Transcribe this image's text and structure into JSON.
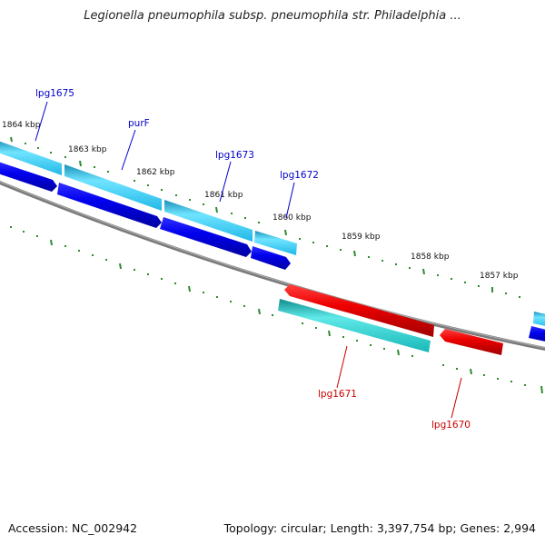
{
  "title": "Legionella pneumophila subsp. pneumophila str. Philadelphia ...",
  "accession": "Accession: NC_002942",
  "stats": "Topology: circular; Length: 3,397,754 bp; Genes: 2,994",
  "ticks": [
    "1864 kbp",
    "1863 kbp",
    "1862 kbp",
    "1861 kbp",
    "1860 kbp",
    "1859 kbp",
    "1858 kbp",
    "1857 kbp"
  ],
  "gene_labels": {
    "lpg1675": "lpg1675",
    "purF": "purF",
    "lpg1673": "lpg1673",
    "lpg1672": "lpg1672",
    "lpg1671": "lpg1671",
    "lpg1670": "lpg1670"
  },
  "colors": {
    "forward_gene": "#0000ee",
    "reverse_gene": "#ee0000",
    "cds_fwd": "#28c8f0",
    "cds_rev": "#20c8c8",
    "backbone": "#808080",
    "tick": "#2e8b2e",
    "forward_label": "#0000cc",
    "reverse_label": "#cc0000"
  }
}
